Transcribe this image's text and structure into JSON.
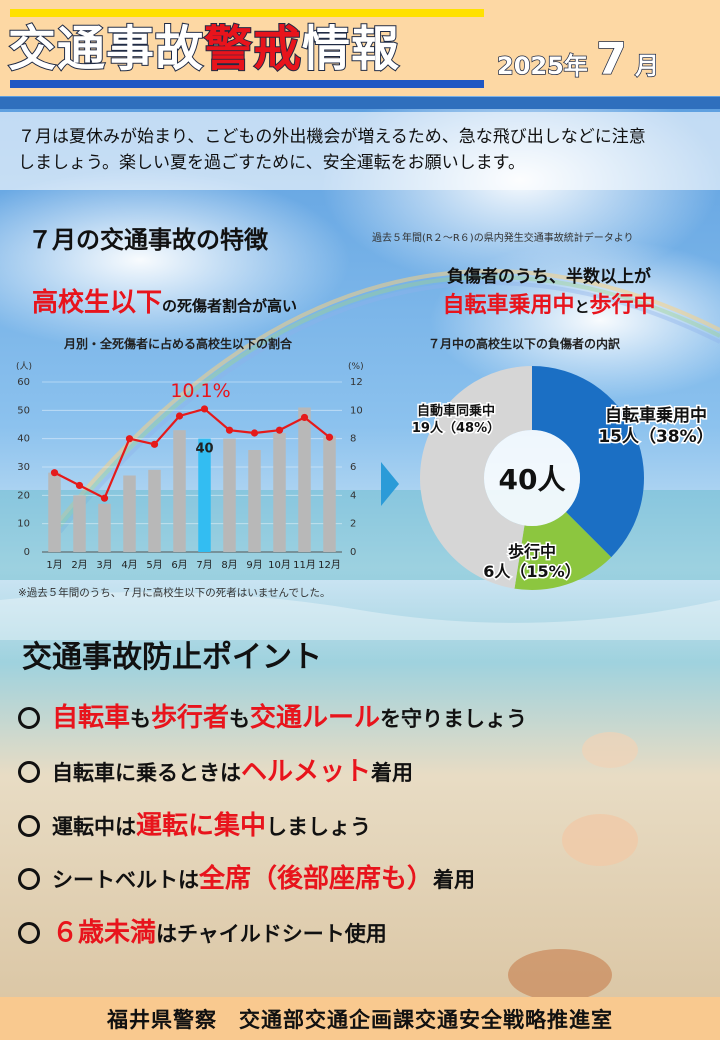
{
  "header": {
    "title_a": "交通事故",
    "title_b": "警戒",
    "title_c": "情報",
    "year": "2025年",
    "month": "7",
    "month_unit": "月"
  },
  "intro": {
    "line1": "７月は夏休みが始まり、こどもの外出機会が増えるため、急な飛び出しなどに注意",
    "line2": "しましょう。楽しい夏を過ごすために、安全運転をお願いします。"
  },
  "features": {
    "title": "７月の交通事故の特徴",
    "source_note": "過去５年間(R２〜R６)の県内発生交通事故統計データより"
  },
  "left_panel": {
    "headline_red": "高校生以下",
    "headline_rest": "の死傷者割合が高い",
    "chart_title": "月別・全死傷者に占める高校生以下の割合",
    "footnote": "※過去５年間のうち、７月に高校生以下の死者はいませんでした。"
  },
  "right_panel": {
    "head_line1": "負傷者のうち、半数以上が",
    "head_red1": "自転車乗用中",
    "head_mid": "と",
    "head_red2": "歩行中",
    "chart_title": "７月中の高校生以下の負傷者の内訳"
  },
  "chart_data": [
    {
      "type": "bar+line",
      "title": "月別・全死傷者に占める高校生以下の割合",
      "categories": [
        "1月",
        "2月",
        "3月",
        "4月",
        "5月",
        "6月",
        "7月",
        "8月",
        "9月",
        "10月",
        "11月",
        "12月"
      ],
      "left_axis_unit": "(人)",
      "right_axis_unit": "(%)",
      "ylim_left": [
        0,
        60
      ],
      "ylim_right": [
        0,
        12
      ],
      "left_ticks": [
        "0",
        "10",
        "20",
        "30",
        "40",
        "50",
        "60"
      ],
      "right_ticks": [
        "0",
        "2",
        "4",
        "6",
        "8",
        "10",
        "12"
      ],
      "series": [
        {
          "kind": "bar",
          "values": [
            28,
            20,
            17,
            27,
            29,
            43,
            40,
            40,
            36,
            42,
            51,
            41
          ],
          "color": "#b8b8b8",
          "highlight_index": 6,
          "highlight_color": "#33bdf2"
        },
        {
          "kind": "line",
          "axis": "right",
          "values": [
            5.6,
            4.7,
            3.8,
            8.0,
            7.6,
            9.6,
            10.1,
            8.6,
            8.4,
            8.6,
            9.5,
            8.1
          ],
          "color": "#e51a1a"
        }
      ],
      "annotations": [
        {
          "text": "10.1%",
          "color": "#e8141c"
        },
        {
          "text": "40",
          "color": "#222222"
        }
      ]
    },
    {
      "type": "pie",
      "title": "７月中の高校生以下の負傷者の内訳",
      "center_label": "40人",
      "slices": [
        {
          "label": "自転車乗用中",
          "value": 15,
          "count_label": "15人（38%）",
          "color": "#1b6fc4"
        },
        {
          "label": "歩行中",
          "value": 6,
          "count_label": "6人（15%）",
          "color": "#8cc63f"
        },
        {
          "label": "自動車同乗中",
          "value": 19,
          "count_label": "19人（48%）",
          "color": "#d6d6d6"
        }
      ]
    }
  ],
  "points": {
    "title": "交通事故防止ポイント",
    "p1_red1": "自転車",
    "p1_t1": "も",
    "p1_red2": "歩行者",
    "p1_t2": "も",
    "p1_red3": "交通ルール",
    "p1_t3": "を守りましょう",
    "p2_t1": "自転車に乗るときは",
    "p2_red": "ヘルメット",
    "p2_t2": "着用",
    "p3_t1": "運転中は",
    "p3_red": "運転に集中",
    "p3_t2": "しましょう",
    "p4_t1": "シートベルトは",
    "p4_red": "全席（後部座席も）",
    "p4_t2": "着用",
    "p5_red": "６歳未満",
    "p5_t1": "はチャイルドシート使用"
  },
  "footer": {
    "text": "福井県警察　交通部交通企画課交通安全戦略推進室"
  }
}
